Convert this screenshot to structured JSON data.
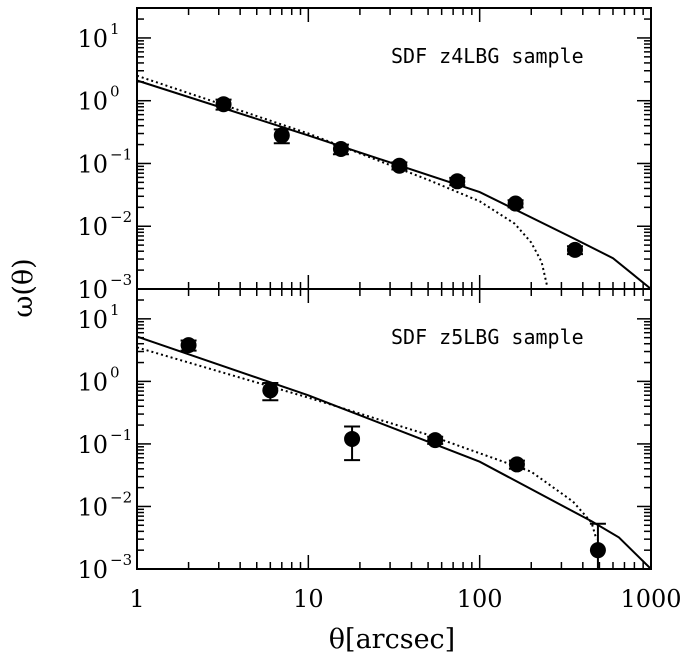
{
  "chart_data": [
    {
      "type": "scatter",
      "annotation": "SDF z4LBG sample",
      "xscale": "log",
      "yscale": "log",
      "xlim": [
        1,
        1000
      ],
      "ylim": [
        0.001,
        30
      ],
      "xlabel": "θ[arcsec]",
      "ylabel": "ω(θ)",
      "ytick_labels": [
        {
          "base": "10",
          "exp": "1",
          "value": 10
        },
        {
          "base": "10",
          "exp": "0",
          "value": 1
        },
        {
          "base": "10",
          "exp": "−1",
          "value": 0.1
        },
        {
          "base": "10",
          "exp": "−2",
          "value": 0.01
        },
        {
          "base": "10",
          "exp": "−3",
          "value": 0.001
        }
      ],
      "points": [
        {
          "x": 3.2,
          "y": 0.88,
          "err_low": 0.16,
          "err_high": 0.16
        },
        {
          "x": 7.0,
          "y": 0.28,
          "err_low": 0.07,
          "err_high": 0.07
        },
        {
          "x": 15.5,
          "y": 0.17,
          "err_low": 0.03,
          "err_high": 0.03
        },
        {
          "x": 34,
          "y": 0.092,
          "err_low": 0.012,
          "err_high": 0.012
        },
        {
          "x": 74,
          "y": 0.052,
          "err_low": 0.007,
          "err_high": 0.007
        },
        {
          "x": 162,
          "y": 0.023,
          "err_low": 0.003,
          "err_high": 0.003
        },
        {
          "x": 360,
          "y": 0.0042,
          "err_low": 0.0006,
          "err_high": 0.0006
        }
      ],
      "models": [
        {
          "style": "solid",
          "points": [
            [
              1,
              2.1
            ],
            [
              10,
              0.28
            ],
            [
              100,
              0.035
            ],
            [
              350,
              0.0065
            ],
            [
              600,
              0.0031
            ],
            [
              1000,
              0.0009
            ]
          ]
        },
        {
          "style": "dotted",
          "points": [
            [
              1,
              2.5
            ],
            [
              10,
              0.3
            ],
            [
              50,
              0.055
            ],
            [
              100,
              0.025
            ],
            [
              160,
              0.011
            ],
            [
              200,
              0.0055
            ],
            [
              230,
              0.0027
            ],
            [
              248,
              0.0011
            ]
          ]
        }
      ]
    },
    {
      "type": "scatter",
      "annotation": "SDF z5LBG sample",
      "xscale": "log",
      "yscale": "log",
      "xlim": [
        1,
        1000
      ],
      "ylim": [
        0.001,
        30
      ],
      "xlabel": "θ[arcsec]",
      "ylabel": "ω(θ)",
      "xtick_labels": [
        {
          "text": "1",
          "value": 1
        },
        {
          "text": "10",
          "value": 10
        },
        {
          "text": "100",
          "value": 100
        },
        {
          "text": "1000",
          "value": 1000
        }
      ],
      "ytick_labels": [
        {
          "base": "10",
          "exp": "1",
          "value": 10
        },
        {
          "base": "10",
          "exp": "0",
          "value": 1
        },
        {
          "base": "10",
          "exp": "−1",
          "value": 0.1
        },
        {
          "base": "10",
          "exp": "−2",
          "value": 0.01
        },
        {
          "base": "10",
          "exp": "−3",
          "value": 0.001
        }
      ],
      "points": [
        {
          "x": 2.0,
          "y": 3.8,
          "err_low": 0.7,
          "err_high": 0.7
        },
        {
          "x": 6.0,
          "y": 0.72,
          "err_low": 0.22,
          "err_high": 0.22
        },
        {
          "x": 18,
          "y": 0.12,
          "err_low": 0.065,
          "err_high": 0.07
        },
        {
          "x": 55,
          "y": 0.115,
          "err_low": 0.015,
          "err_high": 0.015
        },
        {
          "x": 165,
          "y": 0.047,
          "err_low": 0.007,
          "err_high": 0.007
        },
        {
          "x": 490,
          "y": 0.002,
          "err_low": 0.0012,
          "err_high": 0.0033
        }
      ],
      "models": [
        {
          "style": "solid",
          "points": [
            [
              1,
              5.2
            ],
            [
              10,
              0.6
            ],
            [
              100,
              0.052
            ],
            [
              450,
              0.0058
            ],
            [
              650,
              0.0032
            ],
            [
              1000,
              0.00085
            ]
          ]
        },
        {
          "style": "dotted",
          "points": [
            [
              1,
              3.5
            ],
            [
              10,
              0.55
            ],
            [
              50,
              0.14
            ],
            [
              200,
              0.036
            ],
            [
              350,
              0.012
            ],
            [
              450,
              0.0055
            ],
            [
              480,
              0.003
            ]
          ]
        }
      ]
    }
  ]
}
